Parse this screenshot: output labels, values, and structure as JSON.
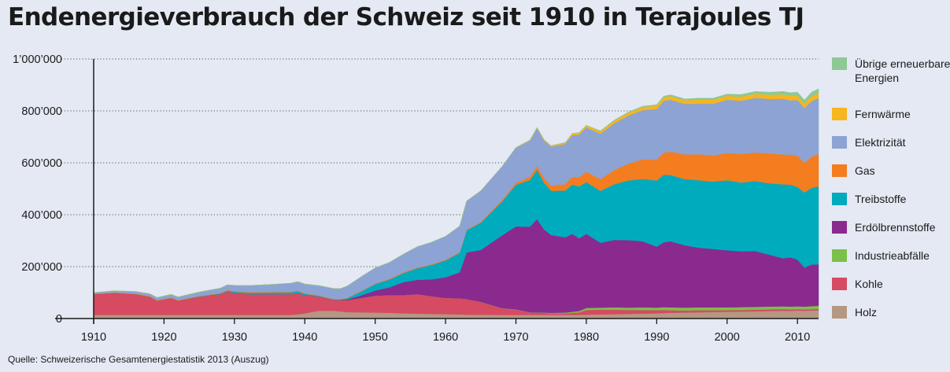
{
  "title": "Endenergieverbrauch der Schweiz seit 1910 in Terajoules TJ",
  "source": "Quelle: Schweizerische Gesamtenergiestatistik 2013 (Auszug)",
  "chart_data": {
    "type": "area",
    "stacked": true,
    "title": "Endenergieverbrauch der Schweiz seit 1910 in Terajoules TJ",
    "xlabel": "",
    "ylabel": "",
    "xlim": [
      1910,
      2013
    ],
    "ylim": [
      0,
      1000000
    ],
    "x_ticks": [
      1910,
      1920,
      1930,
      1940,
      1950,
      1960,
      1970,
      1980,
      1990,
      2000,
      2010
    ],
    "y_ticks": [
      {
        "value": 0,
        "label": "0"
      },
      {
        "value": 200000,
        "label": "200’000"
      },
      {
        "value": 400000,
        "label": "400’000"
      },
      {
        "value": 600000,
        "label": "600’000"
      },
      {
        "value": 800000,
        "label": "800’000"
      },
      {
        "value": 1000000,
        "label": "1’000’000"
      }
    ],
    "grid": "dotted horizontal",
    "legend_position": "right",
    "x": [
      1910,
      1913,
      1916,
      1918,
      1919,
      1920,
      1921,
      1922,
      1925,
      1928,
      1929,
      1930,
      1932,
      1935,
      1938,
      1939,
      1940,
      1942,
      1944,
      1945,
      1946,
      1948,
      1950,
      1952,
      1954,
      1956,
      1958,
      1960,
      1962,
      1963,
      1965,
      1968,
      1970,
      1972,
      1973,
      1974,
      1975,
      1977,
      1978,
      1979,
      1980,
      1982,
      1984,
      1986,
      1988,
      1990,
      1991,
      1992,
      1994,
      1996,
      1998,
      2000,
      2002,
      2004,
      2006,
      2008,
      2009,
      2010,
      2011,
      2012,
      2013
    ],
    "series": [
      {
        "name": "Holz",
        "color": "#b59784",
        "values": [
          14000,
          14000,
          14000,
          14000,
          14000,
          14000,
          14000,
          14000,
          14000,
          14000,
          14000,
          14000,
          14000,
          14000,
          14000,
          16000,
          20000,
          30000,
          30000,
          28000,
          25000,
          24000,
          23000,
          22000,
          20000,
          19000,
          18000,
          17000,
          16000,
          15000,
          15000,
          14000,
          14000,
          14000,
          14000,
          14000,
          14000,
          14000,
          14000,
          14000,
          15000,
          16000,
          17000,
          18000,
          19000,
          20000,
          21000,
          22000,
          23000,
          24000,
          25000,
          26000,
          27000,
          28000,
          29000,
          30000,
          30000,
          31000,
          30000,
          31000,
          32000
        ]
      },
      {
        "name": "Kohle",
        "color": "#d64a62",
        "values": [
          80000,
          85000,
          80000,
          70000,
          55000,
          60000,
          65000,
          55000,
          70000,
          80000,
          90000,
          85000,
          80000,
          80000,
          80000,
          82000,
          70000,
          55000,
          43000,
          43000,
          45000,
          55000,
          65000,
          68000,
          70000,
          75000,
          68000,
          62000,
          62000,
          60000,
          48000,
          25000,
          20000,
          9000,
          8000,
          8000,
          6000,
          6000,
          8000,
          10000,
          18000,
          18000,
          17000,
          15000,
          14000,
          12000,
          12000,
          10000,
          8000,
          8000,
          7000,
          6000,
          6000,
          6000,
          6000,
          6000,
          5000,
          5000,
          5000,
          5000,
          5000
        ]
      },
      {
        "name": "Industrieabfälle",
        "color": "#7cbf4a",
        "values": [
          0,
          0,
          0,
          0,
          0,
          0,
          0,
          0,
          0,
          0,
          0,
          0,
          0,
          0,
          0,
          0,
          0,
          0,
          0,
          0,
          0,
          0,
          0,
          0,
          0,
          0,
          0,
          0,
          0,
          0,
          1000,
          1000,
          1000,
          1000,
          1000,
          1000,
          2000,
          3000,
          4000,
          5000,
          8000,
          8000,
          9000,
          9000,
          10000,
          10000,
          11000,
          11000,
          11000,
          11000,
          11000,
          11000,
          11000,
          11000,
          11000,
          11000,
          11000,
          11000,
          11000,
          12000,
          12000
        ]
      },
      {
        "name": "Erdölbrennstoffe",
        "color": "#8a2a8e",
        "values": [
          0,
          0,
          0,
          0,
          0,
          0,
          0,
          0,
          0,
          0,
          0,
          0,
          0,
          0,
          0,
          0,
          0,
          0,
          0,
          1000,
          3000,
          10000,
          20000,
          30000,
          50000,
          55000,
          65000,
          80000,
          100000,
          180000,
          200000,
          280000,
          320000,
          330000,
          360000,
          320000,
          300000,
          290000,
          300000,
          280000,
          285000,
          250000,
          260000,
          260000,
          255000,
          235000,
          250000,
          255000,
          240000,
          230000,
          225000,
          220000,
          215000,
          215000,
          200000,
          185000,
          190000,
          180000,
          150000,
          160000,
          160000
        ]
      },
      {
        "name": "Treibstoffe",
        "color": "#00abbe",
        "values": [
          0,
          0,
          0,
          0,
          0,
          0,
          0,
          0,
          1000,
          2000,
          3000,
          4000,
          5000,
          6000,
          7000,
          7000,
          5000,
          2000,
          1000,
          1000,
          5000,
          15000,
          25000,
          30000,
          35000,
          45000,
          55000,
          65000,
          75000,
          85000,
          105000,
          130000,
          160000,
          180000,
          190000,
          180000,
          170000,
          180000,
          190000,
          200000,
          200000,
          200000,
          215000,
          230000,
          240000,
          255000,
          260000,
          255000,
          255000,
          260000,
          260000,
          270000,
          265000,
          270000,
          275000,
          285000,
          280000,
          280000,
          290000,
          295000,
          300000
        ]
      },
      {
        "name": "Gas",
        "color": "#f47d20",
        "values": [
          2000,
          2000,
          2000,
          2000,
          2000,
          2000,
          2000,
          2000,
          2000,
          3000,
          3000,
          3000,
          3000,
          3000,
          3000,
          3000,
          3000,
          2000,
          2000,
          2000,
          2000,
          2000,
          2000,
          3000,
          3000,
          3000,
          3000,
          3000,
          3000,
          3000,
          3000,
          5000,
          8000,
          12000,
          15000,
          18000,
          20000,
          25000,
          30000,
          35000,
          40000,
          45000,
          55000,
          65000,
          75000,
          80000,
          85000,
          90000,
          95000,
          100000,
          100000,
          105000,
          110000,
          110000,
          115000,
          115000,
          115000,
          120000,
          115000,
          120000,
          125000
        ]
      },
      {
        "name": "Elektrizität",
        "color": "#8da3d4",
        "values": [
          4000,
          6000,
          8000,
          9000,
          10000,
          11000,
          12000,
          12000,
          15000,
          18000,
          20000,
          22000,
          25000,
          28000,
          32000,
          34000,
          35000,
          38000,
          40000,
          40000,
          45000,
          55000,
          60000,
          63000,
          70000,
          80000,
          85000,
          90000,
          100000,
          110000,
          120000,
          130000,
          135000,
          140000,
          145000,
          145000,
          150000,
          155000,
          160000,
          165000,
          170000,
          175000,
          180000,
          185000,
          190000,
          195000,
          200000,
          200000,
          195000,
          195000,
          200000,
          205000,
          205000,
          210000,
          210000,
          215000,
          210000,
          215000,
          210000,
          215000,
          215000
        ]
      },
      {
        "name": "Fernwärme",
        "color": "#f7b51e",
        "values": [
          0,
          0,
          0,
          0,
          0,
          0,
          0,
          0,
          0,
          0,
          0,
          0,
          0,
          0,
          0,
          0,
          0,
          0,
          0,
          0,
          0,
          0,
          0,
          0,
          0,
          0,
          0,
          0,
          0,
          0,
          0,
          0,
          1000,
          2000,
          3000,
          3000,
          4000,
          5000,
          6000,
          7000,
          8000,
          9000,
          10000,
          11000,
          12000,
          13000,
          14000,
          14000,
          14000,
          15000,
          15000,
          15000,
          16000,
          16000,
          16000,
          17000,
          17000,
          17000,
          17000,
          18000,
          18000
        ]
      },
      {
        "name": "Übrige erneuerbare Energien",
        "color": "#8dc993",
        "values": [
          0,
          0,
          0,
          0,
          0,
          0,
          0,
          0,
          0,
          0,
          0,
          0,
          0,
          0,
          0,
          0,
          0,
          0,
          0,
          0,
          0,
          0,
          0,
          0,
          0,
          0,
          0,
          0,
          0,
          0,
          0,
          0,
          0,
          0,
          0,
          0,
          0,
          0,
          1000,
          1000,
          1000,
          2000,
          2000,
          3000,
          3000,
          4000,
          4000,
          5000,
          5000,
          6000,
          6000,
          7000,
          8000,
          9000,
          10000,
          11000,
          12000,
          13000,
          14000,
          16000,
          18000
        ]
      }
    ]
  }
}
